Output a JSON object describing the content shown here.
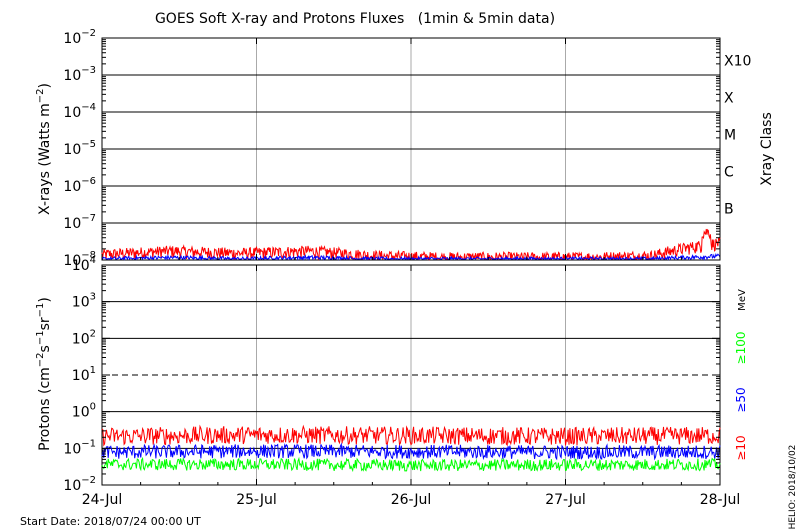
{
  "title": "GOES Soft X-ray and Protons Fluxes   (1min & 5min data)",
  "start_date": "Start Date: 2018/07/24 00:00 UT",
  "footer_right": "HELIO: 2018/10/02",
  "colors": {
    "red": "#ff0000",
    "blue": "#0000ff",
    "green": "#00ff00",
    "grid": "#000000",
    "vgrid": "#aaaaaa"
  },
  "x_ticks": [
    "24-Jul",
    "25-Jul",
    "26-Jul",
    "27-Jul",
    "28-Jul"
  ],
  "chart_data": [
    {
      "type": "line",
      "panel": "xray",
      "ylabel": "X-rays (Watts m⁻²)",
      "right_label": "Xray Class",
      "yscale": "log",
      "ylim": [
        1e-08,
        0.01
      ],
      "yticks": [
        {
          "base": "10",
          "exp": "-2"
        },
        {
          "base": "10",
          "exp": "-3"
        },
        {
          "base": "10",
          "exp": "-4"
        },
        {
          "base": "10",
          "exp": "-5"
        },
        {
          "base": "10",
          "exp": "-6"
        },
        {
          "base": "10",
          "exp": "-7"
        },
        {
          "base": "10",
          "exp": "-8"
        }
      ],
      "flare_classes": [
        "X10",
        "X",
        "M",
        "C",
        "B"
      ],
      "x": [
        "24-Jul",
        "24-Jul 12:00",
        "25-Jul",
        "25-Jul 12:00",
        "26-Jul",
        "26-Jul 12:00",
        "27-Jul",
        "27-Jul 12:00",
        "27-Jul 21:00",
        "28-Jul"
      ],
      "series": [
        {
          "color": "red",
          "values": [
            1.2e-08,
            1.5e-08,
            1.3e-08,
            1.5e-08,
            1.1e-08,
            1e-08,
            1e-08,
            1e-08,
            1.1e-08,
            2.5e-08
          ]
        },
        {
          "color": "blue",
          "values": [
            1e-08,
            1.1e-08,
            1e-08,
            1.1e-08,
            1e-08,
            1e-08,
            1e-08,
            1e-08,
            1e-08,
            1.2e-08
          ]
        }
      ]
    },
    {
      "type": "line",
      "panel": "protons",
      "ylabel": "Protons (cm⁻²s⁻¹sr⁻¹)",
      "yscale": "log",
      "ylim": [
        0.01,
        10000
      ],
      "yticks": [
        {
          "base": "10",
          "exp": "4"
        },
        {
          "base": "10",
          "exp": "3"
        },
        {
          "base": "10",
          "exp": "2"
        },
        {
          "base": "10",
          "exp": "1"
        },
        {
          "base": "10",
          "exp": "0"
        },
        {
          "base": "10",
          "exp": "-1"
        },
        {
          "base": "10",
          "exp": "-2"
        }
      ],
      "threshold": 10,
      "energy_labels": [
        {
          "text": "MeV",
          "color": "black"
        },
        {
          "text": "≥100",
          "color": "green"
        },
        {
          "text": "≥50",
          "color": "blue"
        },
        {
          "text": "≥10",
          "color": "red"
        }
      ],
      "x": [
        "24-Jul",
        "25-Jul",
        "26-Jul",
        "27-Jul",
        "28-Jul"
      ],
      "series": [
        {
          "color": "red",
          "values": [
            0.2,
            0.22,
            0.21,
            0.2,
            0.21
          ]
        },
        {
          "color": "blue",
          "values": [
            0.075,
            0.08,
            0.078,
            0.075,
            0.076
          ]
        },
        {
          "color": "green",
          "values": [
            0.035,
            0.035,
            0.033,
            0.034,
            0.035
          ]
        }
      ]
    }
  ]
}
